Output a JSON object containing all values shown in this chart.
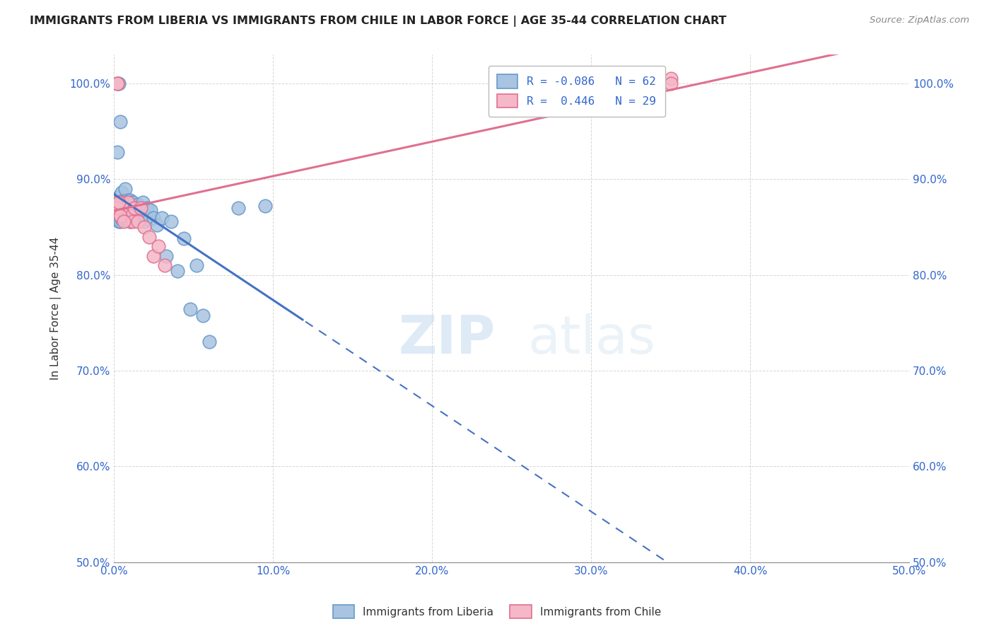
{
  "title": "IMMIGRANTS FROM LIBERIA VS IMMIGRANTS FROM CHILE IN LABOR FORCE | AGE 35-44 CORRELATION CHART",
  "source": "Source: ZipAtlas.com",
  "ylabel": "In Labor Force | Age 35-44",
  "xlim": [
    0.0,
    0.5
  ],
  "ylim": [
    0.5,
    1.03
  ],
  "ytick_labels": [
    "50.0%",
    "60.0%",
    "70.0%",
    "80.0%",
    "90.0%",
    "100.0%"
  ],
  "ytick_values": [
    0.5,
    0.6,
    0.7,
    0.8,
    0.9,
    1.0
  ],
  "xtick_labels": [
    "0.0%",
    "10.0%",
    "20.0%",
    "30.0%",
    "40.0%",
    "50.0%"
  ],
  "xtick_values": [
    0.0,
    0.1,
    0.2,
    0.3,
    0.4,
    0.5
  ],
  "liberia_R": -0.086,
  "liberia_N": 62,
  "chile_R": 0.446,
  "chile_N": 29,
  "liberia_color": "#a8c4e0",
  "liberia_edge": "#6699cc",
  "chile_color": "#f4b8c8",
  "chile_edge": "#e07090",
  "liberia_line_color": "#4472c4",
  "chile_line_color": "#e07090",
  "liberia_line_solid_end": 0.12,
  "liberia_points_x": [
    0.001,
    0.001,
    0.002,
    0.002,
    0.002,
    0.003,
    0.003,
    0.003,
    0.003,
    0.004,
    0.004,
    0.004,
    0.005,
    0.005,
    0.005,
    0.006,
    0.006,
    0.006,
    0.007,
    0.007,
    0.007,
    0.008,
    0.008,
    0.009,
    0.009,
    0.01,
    0.01,
    0.01,
    0.011,
    0.011,
    0.012,
    0.012,
    0.013,
    0.014,
    0.015,
    0.016,
    0.017,
    0.018,
    0.019,
    0.02,
    0.021,
    0.022,
    0.023,
    0.025,
    0.027,
    0.03,
    0.033,
    0.036,
    0.04,
    0.044,
    0.048,
    0.052,
    0.056,
    0.06,
    0.002,
    0.003,
    0.004,
    0.005,
    0.006,
    0.007,
    0.078,
    0.095
  ],
  "liberia_points_y": [
    0.871,
    0.858,
    0.874,
    0.862,
    0.928,
    0.868,
    0.856,
    0.882,
    0.874,
    0.862,
    0.876,
    0.856,
    0.87,
    0.858,
    0.886,
    0.878,
    0.858,
    0.876,
    0.86,
    0.876,
    0.89,
    0.874,
    0.864,
    0.868,
    0.878,
    0.87,
    0.856,
    0.878,
    0.862,
    0.876,
    0.86,
    0.876,
    0.87,
    0.864,
    0.874,
    0.862,
    0.868,
    0.876,
    0.856,
    0.862,
    0.87,
    0.858,
    0.868,
    0.86,
    0.852,
    0.86,
    0.82,
    0.856,
    0.804,
    0.838,
    0.764,
    0.81,
    0.758,
    0.73,
    1.0,
    1.0,
    0.96,
    0.876,
    0.87,
    0.864,
    0.87,
    0.872
  ],
  "chile_points_x": [
    0.001,
    0.001,
    0.002,
    0.002,
    0.003,
    0.004,
    0.004,
    0.005,
    0.006,
    0.007,
    0.008,
    0.009,
    0.01,
    0.011,
    0.012,
    0.013,
    0.015,
    0.017,
    0.019,
    0.022,
    0.025,
    0.028,
    0.032,
    0.002,
    0.003,
    0.004,
    0.006,
    0.35,
    0.35
  ],
  "chile_points_y": [
    0.876,
    0.87,
    1.0,
    1.0,
    0.876,
    0.87,
    0.864,
    0.876,
    0.87,
    0.862,
    0.87,
    0.876,
    0.856,
    0.862,
    0.856,
    0.87,
    0.856,
    0.87,
    0.85,
    0.84,
    0.82,
    0.83,
    0.81,
    0.87,
    0.876,
    0.862,
    0.856,
    1.005,
    1.0
  ],
  "watermark_text": "ZIP",
  "watermark_text2": "atlas",
  "background_color": "#ffffff",
  "grid_color": "#cccccc"
}
